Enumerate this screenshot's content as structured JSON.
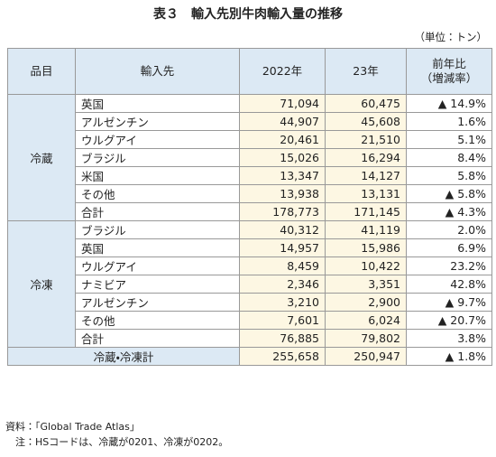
{
  "title": "表３　輸入先別牛肉輸入量の推移",
  "unit": "（単位：トン）",
  "table": {
    "header": [
      "品目",
      "輸入先",
      "2022年",
      "23年",
      [
        "前年比",
        "（増減率）"
      ]
    ],
    "groups": [
      {
        "name": "冷蔵",
        "rows": [
          [
            "英国",
            "71,094",
            "60,475",
            "▲ 14.9%"
          ],
          [
            "アルゼンチン",
            "44,907",
            "45,608",
            "1.6%"
          ],
          [
            "ウルグアイ",
            "20,461",
            "21,510",
            "5.1%"
          ],
          [
            "ブラジル",
            "15,026",
            "16,294",
            "8.4%"
          ],
          [
            "米国",
            "13,347",
            "14,127",
            "5.8%"
          ],
          [
            "その他",
            "13,938",
            "13,131",
            "▲ 5.8%"
          ],
          [
            "合計",
            "178,773",
            "171,145",
            "▲ 4.3%"
          ]
        ]
      },
      {
        "name": "冷凍",
        "rows": [
          [
            "ブラジル",
            "40,312",
            "41,119",
            "2.0%"
          ],
          [
            "英国",
            "14,957",
            "15,986",
            "6.9%"
          ],
          [
            "ウルグアイ",
            "8,459",
            "10,422",
            "23.2%"
          ],
          [
            "ナミビア",
            "2,346",
            "3,351",
            "42.8%"
          ],
          [
            "アルゼンチン",
            "3,210",
            "2,900",
            "▲ 9.7%"
          ],
          [
            "その他",
            "7,601",
            "6,024",
            "▲ 20.7%"
          ],
          [
            "合計",
            "76,885",
            "79,802",
            "3.8%"
          ]
        ]
      }
    ],
    "grand_total": [
      "冷蔵・冷凍計",
      "255,658",
      "250,947",
      "▲ 1.8%"
    ]
  },
  "notes": [
    "資料：「Global Trade Atlas」",
    "　注：HSコードは、冷蔵が0201、冷凍が0202。"
  ]
}
